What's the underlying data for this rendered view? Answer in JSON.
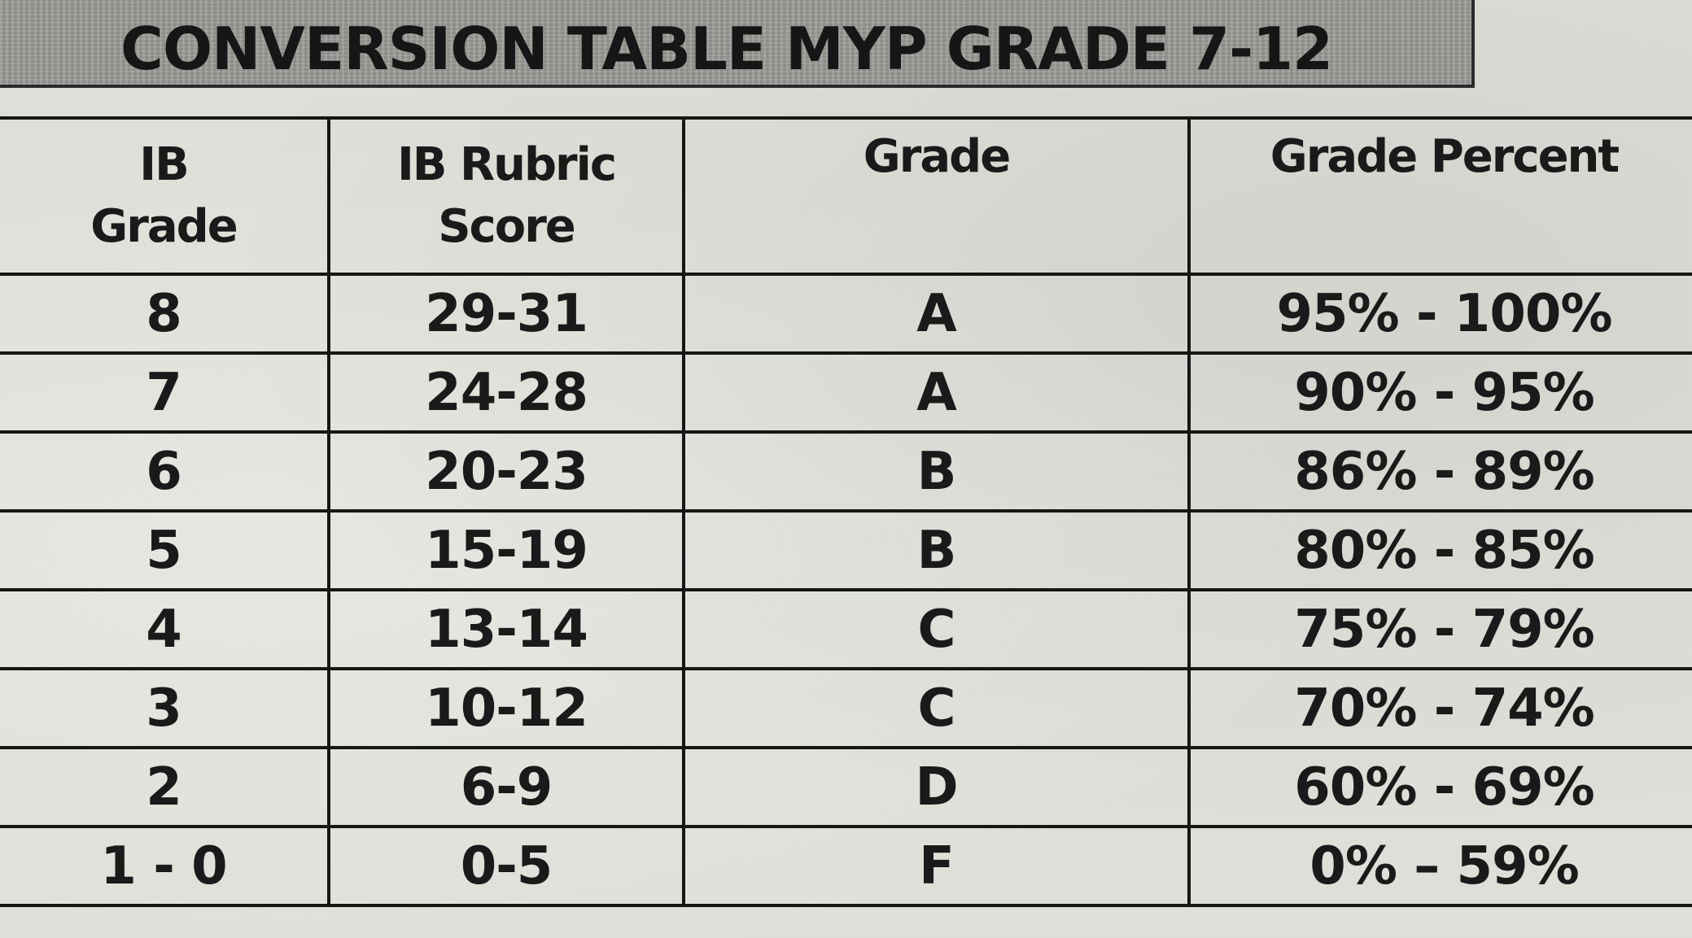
{
  "title": "CONVERSION TABLE MYP GRADE 7-12",
  "headers": {
    "ib_grade": [
      "IB",
      "Grade"
    ],
    "rubric_score": [
      "IB Rubric",
      "Score"
    ],
    "grade": "Grade",
    "grade_percent": "Grade Percent"
  },
  "rows": [
    {
      "ib_grade": "8",
      "rubric_score": "29-31",
      "grade": "A",
      "grade_percent": "95% - 100%"
    },
    {
      "ib_grade": "7",
      "rubric_score": "24-28",
      "grade": "A",
      "grade_percent": "90% - 95%"
    },
    {
      "ib_grade": "6",
      "rubric_score": "20-23",
      "grade": "B",
      "grade_percent": "86% - 89%"
    },
    {
      "ib_grade": "5",
      "rubric_score": "15-19",
      "grade": "B",
      "grade_percent": "80% - 85%"
    },
    {
      "ib_grade": "4",
      "rubric_score": "13-14",
      "grade": "C",
      "grade_percent": "75% - 79%"
    },
    {
      "ib_grade": "3",
      "rubric_score": "10-12",
      "grade": "C",
      "grade_percent": "70% - 74%"
    },
    {
      "ib_grade": "2",
      "rubric_score": "6-9",
      "grade": "D",
      "grade_percent": "60% - 69%"
    },
    {
      "ib_grade": "1 - 0",
      "rubric_score": "0-5",
      "grade": "F",
      "grade_percent": "0% – 59%"
    }
  ]
}
